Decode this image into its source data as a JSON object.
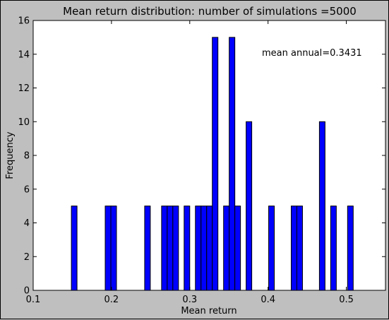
{
  "chart_data": {
    "type": "bar",
    "title": "Mean return distribution: number of simulations =5000",
    "xlabel": "Mean return",
    "ylabel": "Frequency",
    "xlim": [
      0.1,
      0.55
    ],
    "ylim": [
      0,
      16
    ],
    "xticks": [
      0.1,
      0.2,
      0.3,
      0.4,
      0.5
    ],
    "yticks": [
      0,
      2,
      4,
      6,
      8,
      10,
      12,
      14,
      16
    ],
    "annotation": "mean annual=0.3431",
    "grid": false,
    "bar_color": "#0000ff",
    "bin_width": 0.0072,
    "bins": [
      {
        "x": 0.1488,
        "value": 5
      },
      {
        "x": 0.192,
        "value": 5
      },
      {
        "x": 0.1992,
        "value": 5
      },
      {
        "x": 0.2424,
        "value": 5
      },
      {
        "x": 0.264,
        "value": 5
      },
      {
        "x": 0.2712,
        "value": 5
      },
      {
        "x": 0.2784,
        "value": 5
      },
      {
        "x": 0.2928,
        "value": 5
      },
      {
        "x": 0.3072,
        "value": 5
      },
      {
        "x": 0.3144,
        "value": 5
      },
      {
        "x": 0.3216,
        "value": 5
      },
      {
        "x": 0.3288,
        "value": 15
      },
      {
        "x": 0.3432,
        "value": 5
      },
      {
        "x": 0.3504,
        "value": 15
      },
      {
        "x": 0.3576,
        "value": 5
      },
      {
        "x": 0.372,
        "value": 10
      },
      {
        "x": 0.4008,
        "value": 5
      },
      {
        "x": 0.4296,
        "value": 5
      },
      {
        "x": 0.4368,
        "value": 5
      },
      {
        "x": 0.4656,
        "value": 10
      },
      {
        "x": 0.48,
        "value": 5
      },
      {
        "x": 0.5016,
        "value": 5
      }
    ]
  }
}
